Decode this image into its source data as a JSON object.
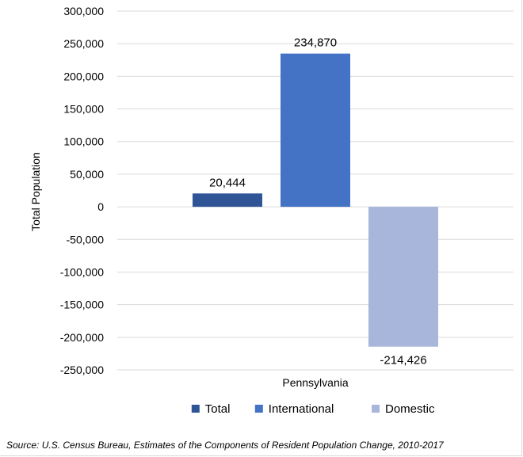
{
  "chart_data": {
    "type": "bar",
    "categories": [
      "Pennsylvania"
    ],
    "xlabel": "Pennsylvania",
    "ylabel": "Total Population",
    "ylim": [
      -250000,
      300000
    ],
    "yticks": [
      300000,
      250000,
      200000,
      150000,
      100000,
      50000,
      0,
      -50000,
      -100000,
      -150000,
      -200000,
      -250000
    ],
    "ytick_labels": [
      "300,000",
      "250,000",
      "200,000",
      "150,000",
      "100,000",
      "50,000",
      "0",
      "-50,000",
      "-100,000",
      "-150,000",
      "-200,000",
      "-250,000"
    ],
    "grid": true,
    "legend_position": "bottom",
    "series": [
      {
        "name": "Total",
        "values": [
          20444
        ],
        "label": "20,444",
        "color": "#2f5597"
      },
      {
        "name": "International",
        "values": [
          234870
        ],
        "label": "234,870",
        "color": "#4472c4"
      },
      {
        "name": "Domestic",
        "values": [
          -214426
        ],
        "label": "-214,426",
        "color": "#a9b6dc"
      }
    ]
  },
  "source": "Source: U.S. Census Bureau, Estimates of the Components of Resident Population Change, 2010-2017"
}
